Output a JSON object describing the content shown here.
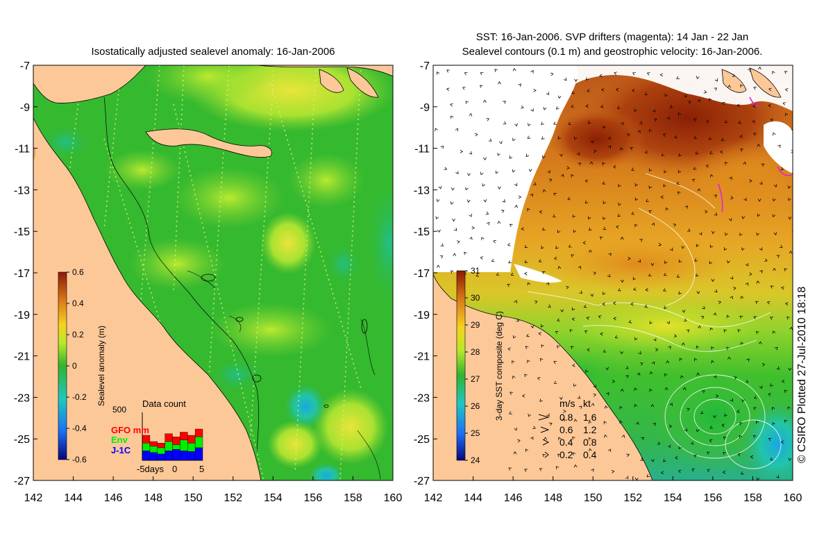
{
  "left_panel": {
    "title": "Isostatically adjusted sealevel anomaly: 16-Jan-2006",
    "colorbar": {
      "label": "Sealevel anomaly (m)",
      "ticks": [
        "0.6",
        "0.4",
        "0.2",
        "0",
        "-0.2",
        "-0.4",
        "-0.6"
      ],
      "colors": [
        "#06067a",
        "#1d6ef5",
        "#1fc7c2",
        "#2fb52f",
        "#b8e82a",
        "#f5d21f",
        "#d9781a",
        "#8b1a05"
      ]
    },
    "data_count": {
      "title": "Data count",
      "ymax_label": "500",
      "legend": [
        "GFO mm",
        "Env",
        "J-1C"
      ],
      "legend_colors": [
        "#ff0000",
        "#00ee00",
        "#0000ff"
      ],
      "xaxis": [
        "-5days",
        "0",
        "5"
      ],
      "bars": [
        {
          "j1c": 0.3,
          "env": 0.55,
          "gfo": 0.8
        },
        {
          "j1c": 0.25,
          "env": 0.45,
          "gfo": 0.6
        },
        {
          "j1c": 0.2,
          "env": 0.4,
          "gfo": 0.55
        },
        {
          "j1c": 0.3,
          "env": 0.6,
          "gfo": 0.85
        },
        {
          "j1c": 0.35,
          "env": 0.5,
          "gfo": 0.75
        },
        {
          "j1c": 0.3,
          "env": 0.65,
          "gfo": 0.9
        },
        {
          "j1c": 0.28,
          "env": 0.55,
          "gfo": 0.8
        },
        {
          "j1c": 0.4,
          "env": 0.75,
          "gfo": 1.0
        }
      ]
    }
  },
  "right_panel": {
    "title_line1": "SST: 16-Jan-2006. SVP drifters (magenta): 14 Jan - 22 Jan",
    "title_line2": "Sealevel contours (0.1 m) and geostrophic velocity: 16-Jan-2006.",
    "colorbar": {
      "label": "3-day SST composite (deg C)",
      "ticks": [
        "31",
        "30",
        "29",
        "28",
        "27",
        "26",
        "25",
        "24"
      ],
      "colors": [
        "#06067a",
        "#1d6ef5",
        "#1fc7c2",
        "#2fb52f",
        "#b8e82a",
        "#f5d21f",
        "#d9781a",
        "#8b1a05"
      ]
    },
    "velocity_legend": {
      "header_ms": "m/s",
      "header_kt": "kt",
      "rows": [
        {
          "ms": "0.8",
          "kt": "1.6"
        },
        {
          "ms": "0.6",
          "kt": "1.2"
        },
        {
          "ms": "0.4",
          "kt": "0.8"
        },
        {
          "ms": "0.2",
          "kt": "0.4"
        }
      ]
    }
  },
  "axes": {
    "y_labels": [
      "-7",
      "-9",
      "-11",
      "-13",
      "-15",
      "-17",
      "-19",
      "-21",
      "-23",
      "-25",
      "-27"
    ],
    "x_labels": [
      "142",
      "144",
      "146",
      "148",
      "150",
      "152",
      "154",
      "156",
      "158",
      "160"
    ]
  },
  "copyright": "© CSIRO Plotted 27-Jul-2010 18:18",
  "colors": {
    "land": "#fcc898",
    "ocean_anomaly_base": "#35b92f",
    "sst_warm": "#d27a1c",
    "sst_hot": "#8a2a08",
    "sst_mid": "#3cbd2e"
  }
}
